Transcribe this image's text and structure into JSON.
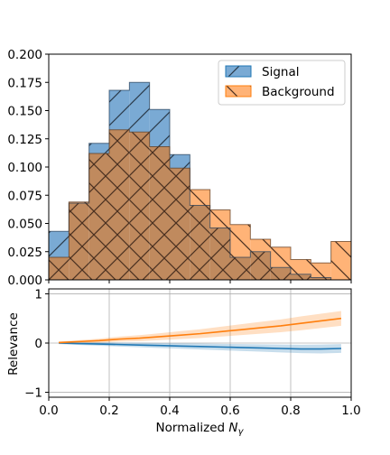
{
  "chart_data": [
    {
      "type": "histogram",
      "panel": "top",
      "bin_edges": [
        0.0,
        0.0667,
        0.1333,
        0.2,
        0.2667,
        0.3333,
        0.4,
        0.4667,
        0.5333,
        0.6,
        0.6667,
        0.7333,
        0.8,
        0.8667,
        0.9333,
        1.0
      ],
      "series": [
        {
          "name": "Signal",
          "values": [
            0.043,
            0.068,
            0.121,
            0.168,
            0.175,
            0.151,
            0.111,
            0.066,
            0.046,
            0.02,
            0.025,
            0.011,
            0.005,
            0.002,
            0.0
          ],
          "color": "#1f77b4",
          "hatch": "/"
        },
        {
          "name": "Background",
          "values": [
            0.02,
            0.069,
            0.112,
            0.133,
            0.131,
            0.118,
            0.099,
            0.08,
            0.062,
            0.049,
            0.036,
            0.029,
            0.018,
            0.015,
            0.034
          ],
          "color": "#ff7f0e",
          "hatch": "\\"
        }
      ],
      "xlim": [
        0.0,
        1.0
      ],
      "ylim": [
        0.0,
        0.2
      ],
      "yticks": [
        0.0,
        0.025,
        0.05,
        0.075,
        0.1,
        0.125,
        0.15,
        0.175,
        0.2
      ],
      "ytick_labels": [
        "0.000",
        "0.025",
        "0.050",
        "0.075",
        "0.100",
        "0.125",
        "0.150",
        "0.175",
        "0.200"
      ],
      "legend": [
        "Signal",
        "Background"
      ],
      "legend_placement": "top-right",
      "grid": false
    },
    {
      "type": "line",
      "panel": "bottom",
      "x": [
        0.033,
        0.1,
        0.167,
        0.233,
        0.3,
        0.367,
        0.433,
        0.5,
        0.567,
        0.633,
        0.7,
        0.767,
        0.833,
        0.9,
        0.967
      ],
      "series": [
        {
          "name": "Signal",
          "color": "#1f77b4",
          "values": [
            0.0,
            -0.01,
            -0.02,
            -0.03,
            -0.04,
            -0.05,
            -0.06,
            -0.07,
            -0.08,
            -0.09,
            -0.1,
            -0.11,
            -0.12,
            -0.12,
            -0.11
          ],
          "band": [
            0.02,
            0.03,
            0.035,
            0.04,
            0.045,
            0.05,
            0.055,
            0.06,
            0.065,
            0.07,
            0.075,
            0.08,
            0.085,
            0.09,
            0.09
          ]
        },
        {
          "name": "Background",
          "color": "#ff7f0e",
          "values": [
            0.01,
            0.03,
            0.05,
            0.08,
            0.1,
            0.13,
            0.16,
            0.19,
            0.23,
            0.27,
            0.31,
            0.35,
            0.4,
            0.45,
            0.5
          ],
          "band": [
            0.02,
            0.03,
            0.04,
            0.05,
            0.06,
            0.07,
            0.08,
            0.09,
            0.1,
            0.11,
            0.12,
            0.13,
            0.14,
            0.145,
            0.15
          ]
        }
      ],
      "xlim": [
        0.0,
        1.0
      ],
      "ylim": [
        -1.1,
        1.1
      ],
      "yticks": [
        -1,
        0,
        1
      ],
      "ytick_labels": [
        "−1",
        "0",
        "1"
      ],
      "xticks": [
        0.0,
        0.2,
        0.4,
        0.6,
        0.8,
        1.0
      ],
      "xtick_labels": [
        "0.0",
        "0.2",
        "0.4",
        "0.6",
        "0.8",
        "1.0"
      ],
      "ylabel": "Relevance",
      "xlabel_text": "Normalized ",
      "xlabel_symbol": "N",
      "xlabel_subscript": "γ",
      "grid": true
    }
  ]
}
